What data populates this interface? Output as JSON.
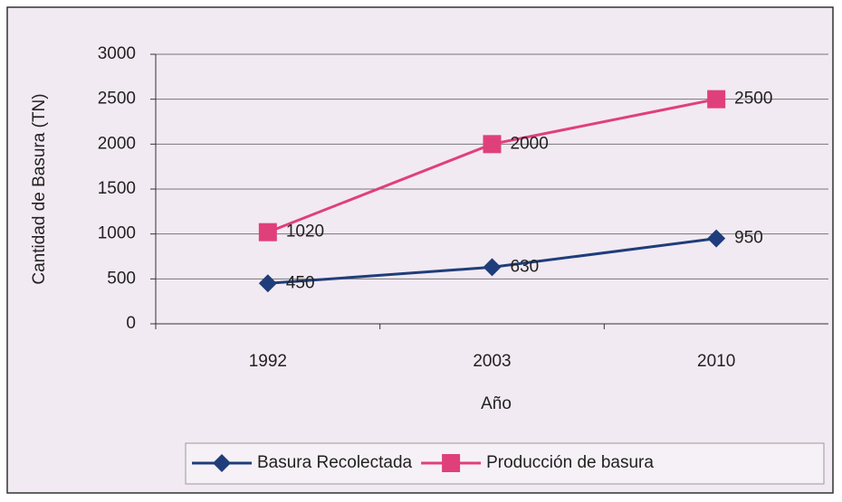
{
  "chart_data": {
    "type": "line",
    "y_label": "Cantidad de Basura (TN)",
    "x_label": "Año",
    "categories": [
      "1992",
      "2003",
      "2010"
    ],
    "series": [
      {
        "name": "Basura Recolectada",
        "color": "#1f3d7a",
        "marker": "diamond",
        "values": [
          450,
          630,
          950
        ]
      },
      {
        "name": "Producción de basura",
        "color": "#e0407a",
        "marker": "square",
        "values": [
          1020,
          2000,
          2500
        ]
      }
    ],
    "ylim": [
      0,
      3000
    ],
    "yticks": [
      0,
      500,
      1000,
      1500,
      2000,
      2500,
      3000
    ],
    "grid": true,
    "legend": "bottom",
    "data_labels": true
  }
}
